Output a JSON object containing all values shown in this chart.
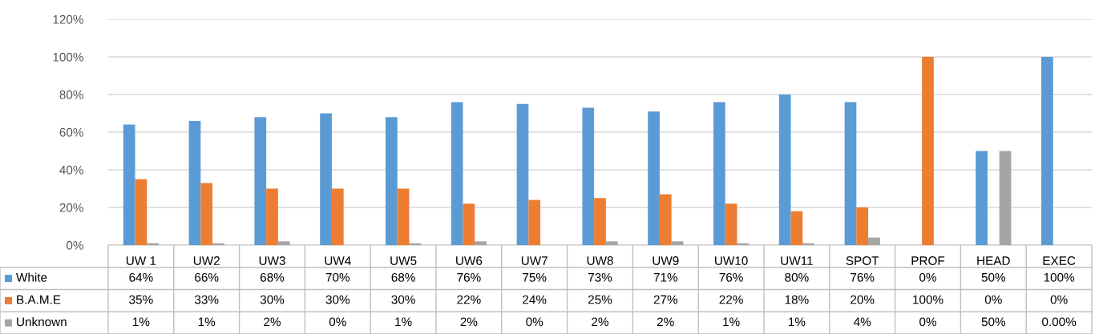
{
  "chart_data": {
    "type": "bar",
    "categories": [
      "UW 1",
      "UW2",
      "UW3",
      "UW4",
      "UW5",
      "UW6",
      "UW7",
      "UW8",
      "UW9",
      "UW10",
      "UW11",
      "SPOT",
      "PROF",
      "HEAD",
      "EXEC"
    ],
    "series": [
      {
        "name": "White",
        "color": "#5b9bd5",
        "values": [
          64,
          66,
          68,
          70,
          68,
          76,
          75,
          73,
          71,
          76,
          80,
          76,
          0,
          50,
          100
        ],
        "value_labels": [
          "64%",
          "66%",
          "68%",
          "70%",
          "68%",
          "76%",
          "75%",
          "73%",
          "71%",
          "76%",
          "80%",
          "76%",
          "0%",
          "50%",
          "100%"
        ]
      },
      {
        "name": "B.A.M.E",
        "color": "#ed7d31",
        "values": [
          35,
          33,
          30,
          30,
          30,
          22,
          24,
          25,
          27,
          22,
          18,
          20,
          100,
          0,
          0
        ],
        "value_labels": [
          "35%",
          "33%",
          "30%",
          "30%",
          "30%",
          "22%",
          "24%",
          "25%",
          "27%",
          "22%",
          "18%",
          "20%",
          "100%",
          "0%",
          "0%"
        ]
      },
      {
        "name": "Unknown",
        "color": "#a5a5a5",
        "values": [
          1,
          1,
          2,
          0,
          1,
          2,
          0,
          2,
          2,
          1,
          1,
          4,
          0,
          50,
          0
        ],
        "value_labels": [
          "1%",
          "1%",
          "2%",
          "0%",
          "1%",
          "2%",
          "0%",
          "2%",
          "2%",
          "1%",
          "1%",
          "4%",
          "0%",
          "50%",
          "0.00%"
        ]
      }
    ],
    "ylim": [
      0,
      120
    ],
    "yticks": [
      {
        "value": 0,
        "label": "0%"
      },
      {
        "value": 20,
        "label": "20%"
      },
      {
        "value": 40,
        "label": "40%"
      },
      {
        "value": 60,
        "label": "60%"
      },
      {
        "value": 80,
        "label": "80%"
      },
      {
        "value": 100,
        "label": "100%"
      },
      {
        "value": 120,
        "label": "120%"
      }
    ],
    "grid": "y",
    "legend": "bottom"
  }
}
